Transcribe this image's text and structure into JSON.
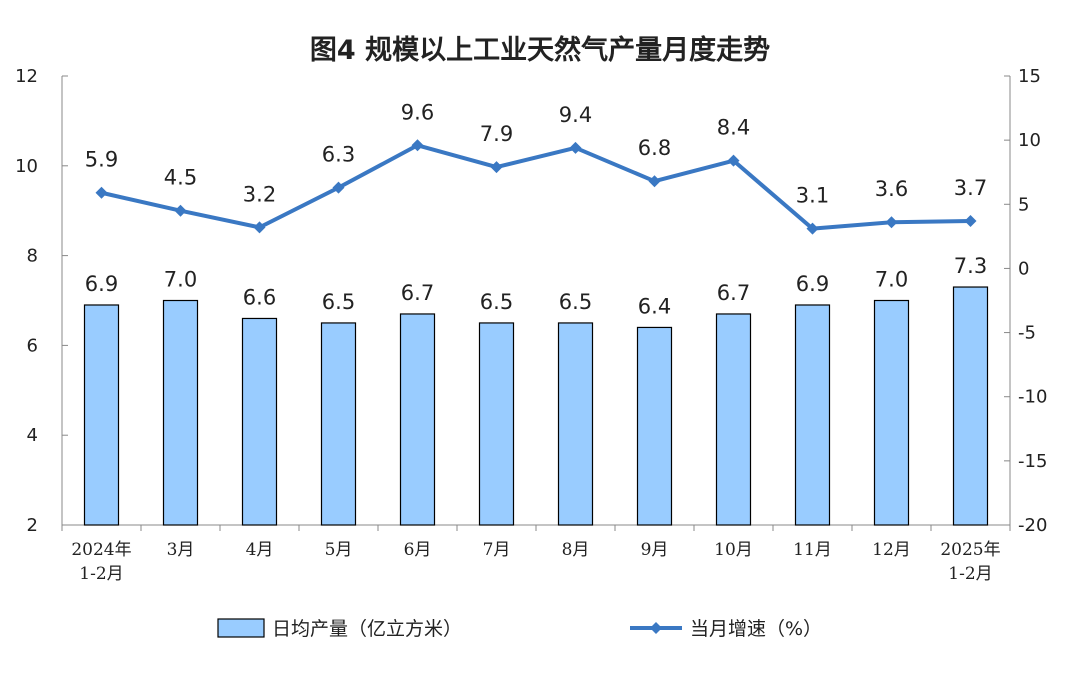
{
  "chart_data": {
    "type": "bar",
    "title": "图4  规模以上工业天然气产量月度走势",
    "categories": [
      [
        "2024年",
        "1-2月"
      ],
      [
        "3月"
      ],
      [
        "4月"
      ],
      [
        "5月"
      ],
      [
        "6月"
      ],
      [
        "7月"
      ],
      [
        "8月"
      ],
      [
        "9月"
      ],
      [
        "10月"
      ],
      [
        "11月"
      ],
      [
        "12月"
      ],
      [
        "2025年",
        "1-2月"
      ]
    ],
    "series": [
      {
        "name": "日均产量（亿立方米）",
        "type": "bar",
        "axis": "left",
        "values": [
          6.9,
          7.0,
          6.6,
          6.5,
          6.7,
          6.5,
          6.5,
          6.4,
          6.7,
          6.9,
          7.0,
          7.3
        ],
        "labels": [
          "6.9",
          "7.0",
          "6.6",
          "6.5",
          "6.7",
          "6.5",
          "6.5",
          "6.4",
          "6.7",
          "6.9",
          "7.0",
          "7.3"
        ],
        "color": "#99ccff",
        "stroke": "#000000"
      },
      {
        "name": "当月增速（%）",
        "type": "line",
        "axis": "right",
        "values": [
          5.9,
          4.5,
          3.2,
          6.3,
          9.6,
          7.9,
          9.4,
          6.8,
          8.4,
          3.1,
          3.6,
          3.7
        ],
        "labels": [
          "5.9",
          "4.5",
          "3.2",
          "6.3",
          "9.6",
          "7.9",
          "9.4",
          "6.8",
          "8.4",
          "3.1",
          "3.6",
          "3.7"
        ],
        "color": "#3a78c3",
        "marker": "diamond"
      }
    ],
    "y_left": {
      "min": 2,
      "max": 12,
      "ticks": [
        "2",
        "4",
        "6",
        "8",
        "10",
        "12"
      ]
    },
    "y_right": {
      "min": -20,
      "max": 15,
      "ticks": [
        "-20",
        "-15",
        "-10",
        "-5",
        "0",
        "5",
        "10",
        "15"
      ]
    },
    "grid": false,
    "legend_position": "bottom"
  }
}
